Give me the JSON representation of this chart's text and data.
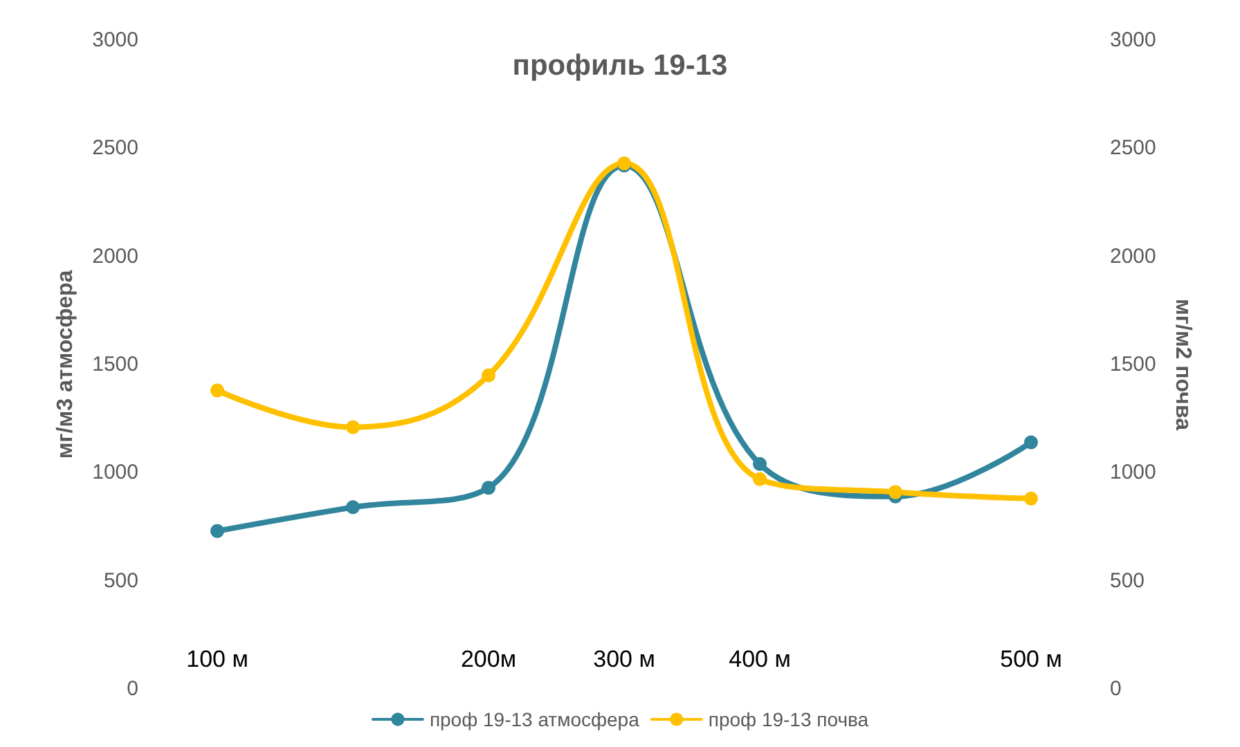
{
  "chart_data": {
    "type": "line",
    "title": "профиль 19-13",
    "categories": [
      "100 м",
      null,
      "200м",
      "300 м",
      "400 м",
      null,
      "500 м"
    ],
    "ylabel": "мг/м3 атмосфера",
    "y2label": "мг/м2 почва",
    "ylim": [
      0,
      3000
    ],
    "yticks": [
      0,
      500,
      1000,
      1500,
      2000,
      2500,
      3000
    ],
    "y2lim": [
      0,
      3000
    ],
    "y2ticks": [
      0,
      500,
      1000,
      1500,
      2000,
      2500,
      3000
    ],
    "series": [
      {
        "name": "проф 19-13 атмосфера",
        "color": "#31859c",
        "values": [
          730,
          840,
          930,
          2420,
          1040,
          890,
          1140
        ]
      },
      {
        "name": "проф 19-13 почва",
        "color": "#ffc000",
        "axis": "y2",
        "values": [
          1380,
          1210,
          1450,
          2430,
          970,
          910,
          880
        ]
      }
    ],
    "grid": false,
    "legend": "bottom",
    "marker": "circle",
    "line_style": "solid"
  }
}
